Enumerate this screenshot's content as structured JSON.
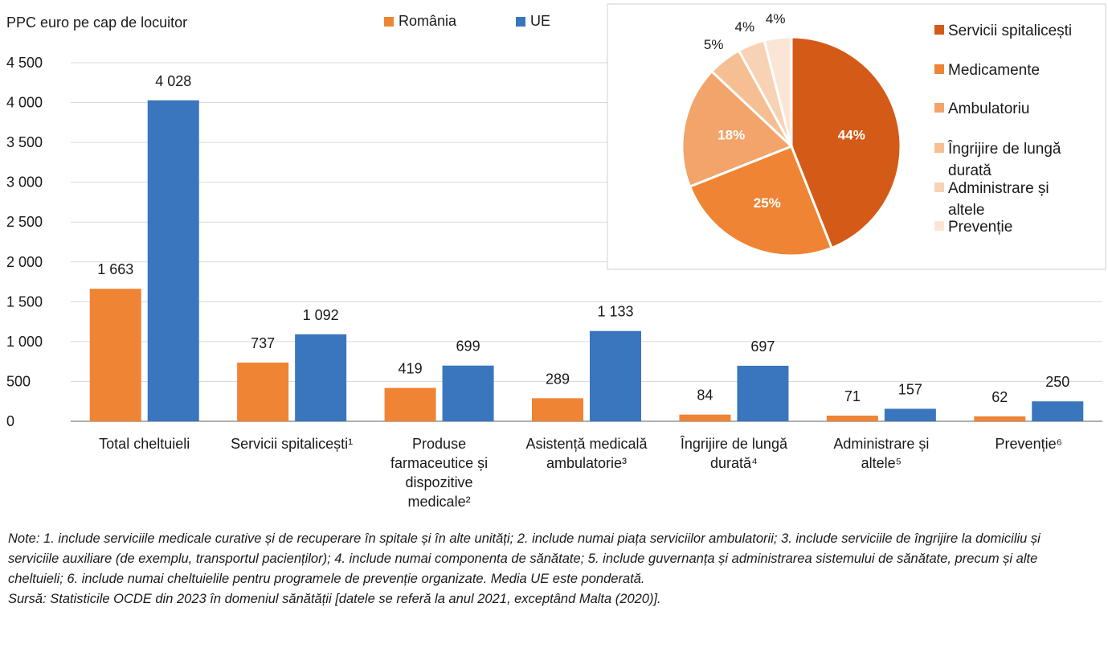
{
  "chart_data": [
    {
      "type": "bar",
      "ylabel": "PPC euro pe cap de locuitor",
      "ylim": [
        0,
        4500
      ],
      "yticks": [
        0,
        500,
        1000,
        1500,
        2000,
        2500,
        3000,
        3500,
        4000,
        4500
      ],
      "ytick_labels": [
        "0",
        "500",
        "1 000",
        "1 500",
        "2 000",
        "2 500",
        "3 000",
        "3 500",
        "4 000",
        "4 500"
      ],
      "grid": "horizontal",
      "legend_position": "top",
      "categories": [
        "Total cheltuieli",
        "Servicii spitalicești¹",
        "Produse farmaceutice și dispozitive medicale²",
        "Asistență medicală ambulatorie³",
        "Îngrijire de lungă durată⁴",
        "Administrare și altele⁵",
        "Prevenție⁶"
      ],
      "category_lines": [
        [
          "Total cheltuieli"
        ],
        [
          "Servicii spitalicești¹"
        ],
        [
          "Produse",
          "farmaceutice și",
          "dispozitive",
          "medicale²"
        ],
        [
          "Asistență medicală",
          "ambulatorie³"
        ],
        [
          "Îngrijire de lungă",
          "durată⁴"
        ],
        [
          "Administrare și",
          "altele⁵"
        ],
        [
          "Prevenție⁶"
        ]
      ],
      "series": [
        {
          "name": "România",
          "color": "#ef8434",
          "values": [
            1663,
            737,
            419,
            289,
            84,
            71,
            62
          ],
          "labels": [
            "1 663",
            "737",
            "419",
            "289",
            "84",
            "71",
            "62"
          ]
        },
        {
          "name": "UE",
          "color": "#3a76bd",
          "values": [
            4028,
            1092,
            699,
            1133,
            697,
            157,
            250
          ],
          "labels": [
            "4 028",
            "1 092",
            "699",
            "1 133",
            "697",
            "157",
            "250"
          ]
        }
      ]
    },
    {
      "type": "pie",
      "slices": [
        {
          "name": "Servicii spitalicești",
          "value": 44,
          "label": "44%",
          "color": "#d45a18"
        },
        {
          "name": "Medicamente",
          "value": 25,
          "label": "25%",
          "color": "#ef8434"
        },
        {
          "name": "Ambulatoriu",
          "value": 18,
          "label": "18%",
          "color": "#f2a46a"
        },
        {
          "name": "Îngrijire de lungă durată",
          "value": 5,
          "label": "5%",
          "color": "#f6bf93"
        },
        {
          "name": "Administrare și altele",
          "value": 4,
          "label": "4%",
          "color": "#f8d2b4"
        },
        {
          "name": "Prevenție",
          "value": 4,
          "label": "4%",
          "color": "#fbe6d6"
        }
      ],
      "legend_lines": [
        [
          "Servicii spitalicești"
        ],
        [
          "Medicamente"
        ],
        [
          "Ambulatoriu"
        ],
        [
          "Îngrijire de lungă",
          "durată"
        ],
        [
          "Administrare și",
          "altele"
        ],
        [
          "Prevenție"
        ]
      ],
      "legend_position": "right"
    }
  ],
  "notes": {
    "note": "Note: 1. include serviciile medicale curative și de recuperare în spitale și în alte unități; 2. include numai piața serviciilor ambulatorii; 3. include serviciile de îngrijire la domiciliu și serviciile auxiliare (de exemplu, transportul pacienților); 4. include numai componenta de sănătate; 5. include guvernanța și administrarea sistemului de sănătate, precum și alte cheltuieli; 6. include numai cheltuielile pentru programele de prevenție organizate. Media UE este ponderată.",
    "source": "Sursă: Statisticile OCDE din 2023 în domeniul sănătății [datele se referă la anul 2021, exceptând Malta (2020)]."
  }
}
